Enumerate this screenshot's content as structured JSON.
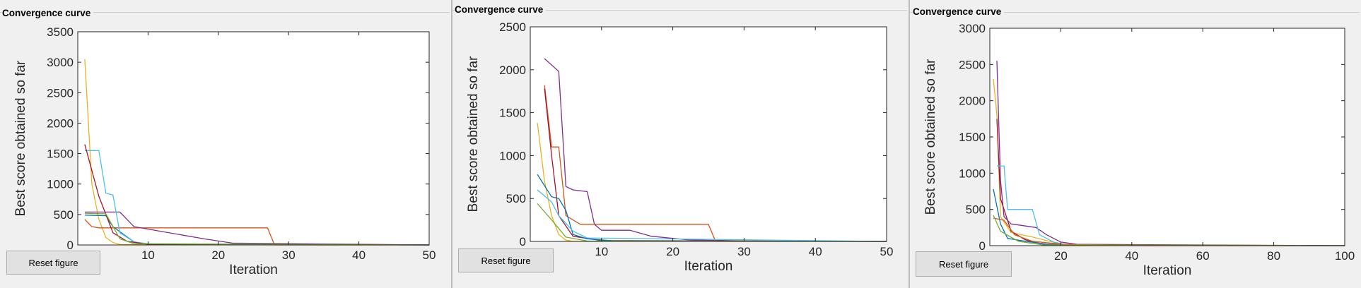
{
  "colors": {
    "palette": [
      "#0072bd",
      "#d95319",
      "#edb120",
      "#7e2f8e",
      "#77ac30",
      "#4dbeee",
      "#a2142f"
    ]
  },
  "panels": [
    {
      "title": "Convergence curve",
      "reset_label": "Reset figure",
      "chart_data": {
        "type": "line",
        "title": "",
        "xlabel": "Iteration",
        "ylabel": "Best score obtained so far",
        "xlim": [
          0,
          50
        ],
        "ylim": [
          0,
          3500
        ],
        "xticks": [
          10,
          20,
          30,
          40,
          50
        ],
        "yticks": [
          0,
          500,
          1000,
          1500,
          2000,
          2500,
          3000,
          3500
        ],
        "grid": false,
        "series": [
          {
            "color": "#edb120",
            "points": [
              [
                1,
                3050
              ],
              [
                2,
                1000
              ],
              [
                3,
                420
              ],
              [
                4,
                120
              ],
              [
                5,
                40
              ],
              [
                6,
                8
              ],
              [
                8,
                3
              ],
              [
                50,
                0
              ]
            ]
          },
          {
            "color": "#d95319",
            "points": [
              [
                1,
                420
              ],
              [
                2,
                300
              ],
              [
                3,
                280
              ],
              [
                27,
                280
              ],
              [
                28,
                0
              ],
              [
                50,
                0
              ]
            ]
          },
          {
            "color": "#7e2f8e",
            "points": [
              [
                1,
                540
              ],
              [
                6,
                540
              ],
              [
                8,
                300
              ],
              [
                18,
                100
              ],
              [
                22,
                30
              ],
              [
                50,
                0
              ]
            ]
          },
          {
            "color": "#0072bd",
            "points": [
              [
                1,
                490
              ],
              [
                4,
                480
              ],
              [
                5,
                300
              ],
              [
                8,
                50
              ],
              [
                10,
                15
              ],
              [
                50,
                0
              ]
            ]
          },
          {
            "color": "#4dbeee",
            "points": [
              [
                1,
                1550
              ],
              [
                3,
                1550
              ],
              [
                4,
                850
              ],
              [
                5,
                820
              ],
              [
                6,
                200
              ],
              [
                8,
                50
              ],
              [
                10,
                20
              ],
              [
                50,
                0
              ]
            ]
          },
          {
            "color": "#a2142f",
            "points": [
              [
                1,
                1650
              ],
              [
                3,
                800
              ],
              [
                4,
                500
              ],
              [
                5,
                200
              ],
              [
                7,
                60
              ],
              [
                10,
                10
              ],
              [
                50,
                0
              ]
            ]
          },
          {
            "color": "#77ac30",
            "points": [
              [
                1,
                520
              ],
              [
                4,
                510
              ],
              [
                6,
                100
              ],
              [
                8,
                20
              ],
              [
                50,
                0
              ]
            ]
          }
        ]
      }
    },
    {
      "title": "Convergence curve",
      "reset_label": "Reset figure",
      "chart_data": {
        "type": "line",
        "title": "",
        "xlabel": "Iteration",
        "ylabel": "Best score obtained so far",
        "xlim": [
          0,
          50
        ],
        "ylim": [
          0,
          2500
        ],
        "xticks": [
          10,
          20,
          30,
          40,
          50
        ],
        "yticks": [
          0,
          500,
          1000,
          1500,
          2000,
          2500
        ],
        "grid": false,
        "series": [
          {
            "color": "#edb120",
            "points": [
              [
                1,
                1380
              ],
              [
                2,
                700
              ],
              [
                3,
                300
              ],
              [
                4,
                80
              ],
              [
                5,
                15
              ],
              [
                6,
                2
              ],
              [
                50,
                0
              ]
            ]
          },
          {
            "color": "#7e2f8e",
            "points": [
              [
                2,
                2130
              ],
              [
                4,
                1980
              ],
              [
                5,
                640
              ],
              [
                6,
                600
              ],
              [
                8,
                580
              ],
              [
                9,
                200
              ],
              [
                10,
                130
              ],
              [
                14,
                130
              ],
              [
                17,
                60
              ],
              [
                22,
                20
              ],
              [
                30,
                5
              ],
              [
                50,
                0
              ]
            ]
          },
          {
            "color": "#d95319",
            "points": [
              [
                2,
                1820
              ],
              [
                3,
                1100
              ],
              [
                4,
                1100
              ],
              [
                5,
                300
              ],
              [
                7,
                200
              ],
              [
                25,
                200
              ],
              [
                26,
                0
              ],
              [
                50,
                0
              ]
            ]
          },
          {
            "color": "#a2142f",
            "points": [
              [
                2,
                1780
              ],
              [
                3,
                1000
              ],
              [
                4,
                300
              ],
              [
                6,
                60
              ],
              [
                10,
                10
              ],
              [
                50,
                0
              ]
            ]
          },
          {
            "color": "#0072bd",
            "points": [
              [
                1,
                780
              ],
              [
                3,
                520
              ],
              [
                4,
                500
              ],
              [
                5,
                360
              ],
              [
                6,
                80
              ],
              [
                8,
                30
              ],
              [
                12,
                5
              ],
              [
                50,
                0
              ]
            ]
          },
          {
            "color": "#4dbeee",
            "points": [
              [
                1,
                600
              ],
              [
                3,
                460
              ],
              [
                4,
                300
              ],
              [
                6,
                120
              ],
              [
                8,
                40
              ],
              [
                50,
                0
              ]
            ]
          },
          {
            "color": "#77ac30",
            "points": [
              [
                1,
                440
              ],
              [
                3,
                250
              ],
              [
                5,
                50
              ],
              [
                8,
                5
              ],
              [
                50,
                0
              ]
            ]
          }
        ]
      }
    },
    {
      "title": "Convergence curve",
      "reset_label": "Reset figure",
      "chart_data": {
        "type": "line",
        "title": "",
        "xlabel": "Iteration",
        "ylabel": "Best score obtained so far",
        "xlim": [
          0,
          100
        ],
        "ylim": [
          0,
          3000
        ],
        "xticks": [
          20,
          40,
          60,
          80,
          100
        ],
        "yticks": [
          0,
          500,
          1000,
          1500,
          2000,
          2500,
          3000
        ],
        "grid": false,
        "series": [
          {
            "color": "#7e2f8e",
            "points": [
              [
                2,
                2550
              ],
              [
                3,
                900
              ],
              [
                4,
                400
              ],
              [
                6,
                300
              ],
              [
                13,
                250
              ],
              [
                16,
                150
              ],
              [
                20,
                50
              ],
              [
                26,
                10
              ],
              [
                40,
                0
              ],
              [
                100,
                0
              ]
            ]
          },
          {
            "color": "#edb120",
            "points": [
              [
                1,
                2300
              ],
              [
                2,
                1800
              ],
              [
                3,
                400
              ],
              [
                6,
                180
              ],
              [
                12,
                120
              ],
              [
                20,
                20
              ],
              [
                30,
                5
              ],
              [
                100,
                0
              ]
            ]
          },
          {
            "color": "#a2142f",
            "points": [
              [
                2,
                1750
              ],
              [
                3,
                650
              ],
              [
                4,
                500
              ],
              [
                6,
                200
              ],
              [
                10,
                80
              ],
              [
                15,
                20
              ],
              [
                100,
                0
              ]
            ]
          },
          {
            "color": "#4dbeee",
            "points": [
              [
                2,
                1100
              ],
              [
                4,
                1100
              ],
              [
                5,
                500
              ],
              [
                12,
                500
              ],
              [
                14,
                150
              ],
              [
                18,
                50
              ],
              [
                22,
                10
              ],
              [
                100,
                0
              ]
            ]
          },
          {
            "color": "#0072bd",
            "points": [
              [
                1,
                780
              ],
              [
                3,
                300
              ],
              [
                5,
                100
              ],
              [
                10,
                60
              ],
              [
                16,
                20
              ],
              [
                25,
                5
              ],
              [
                100,
                0
              ]
            ]
          },
          {
            "color": "#d95319",
            "points": [
              [
                1,
                380
              ],
              [
                4,
                350
              ],
              [
                7,
                150
              ],
              [
                12,
                60
              ],
              [
                20,
                20
              ],
              [
                44,
                0
              ],
              [
                100,
                0
              ]
            ]
          },
          {
            "color": "#77ac30",
            "points": [
              [
                1,
                420
              ],
              [
                3,
                200
              ],
              [
                8,
                60
              ],
              [
                15,
                10
              ],
              [
                100,
                0
              ]
            ]
          }
        ]
      }
    }
  ]
}
